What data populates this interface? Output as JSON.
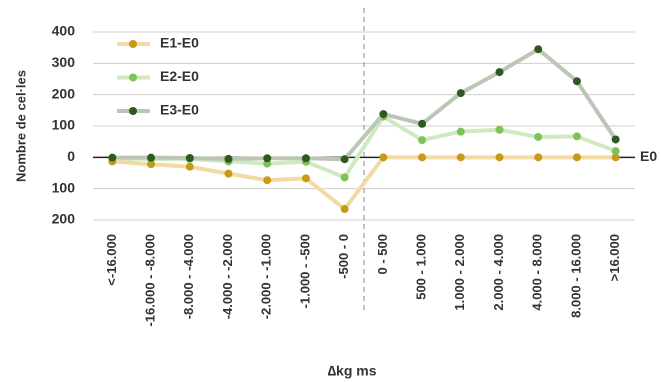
{
  "chart_data": {
    "type": "line",
    "y_label": "Nombre de cel·les",
    "x_label": "∆kg ms",
    "zero_line_label": "E0",
    "categories": [
      "<-16.000",
      "-16.000 - -8.000",
      "-8.000 - -4.000",
      "-4.000 - -2.000",
      "-2.000 - -1.000",
      "-1.000 - -500",
      "-500 - 0",
      "0 - 500",
      "500 - 1.000",
      "1.000 - 2.000",
      "2.000 - 4.000",
      "4.000 - 8.000",
      "8.000 - 16.000",
      ">16.000"
    ],
    "series": [
      {
        "name": "E1-E0",
        "color": "#c99a1a",
        "line_color": "#f3d9a4",
        "values": [
          -13,
          -22,
          -30,
          -52,
          -73,
          -67,
          -165,
          0,
          0,
          0,
          0,
          0,
          0,
          0
        ]
      },
      {
        "name": "E2-E0",
        "color": "#7dc35a",
        "line_color": "#cfeac2",
        "values": [
          -3,
          -5,
          -5,
          -13,
          -20,
          -14,
          -64,
          130,
          55,
          82,
          88,
          65,
          67,
          20
        ]
      },
      {
        "name": "E3-E0",
        "color": "#2f5a1e",
        "line_color": "#bcc6b4",
        "values": [
          -1,
          -1,
          -2,
          -5,
          -3,
          -3,
          -6,
          138,
          107,
          205,
          272,
          345,
          243,
          57
        ]
      }
    ],
    "ylim": [
      -200,
      400
    ],
    "yticks": [
      {
        "value": -200,
        "label": "200"
      },
      {
        "value": -100,
        "label": "100"
      },
      0,
      100,
      200,
      300,
      400
    ],
    "grid": true
  }
}
